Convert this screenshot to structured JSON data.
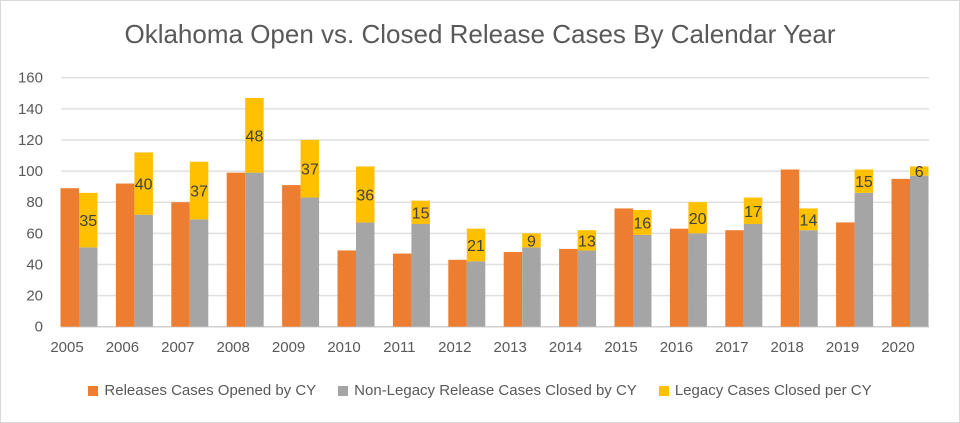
{
  "chart_data": {
    "type": "bar",
    "title": "Oklahoma Open vs. Closed Release Cases By Calendar Year",
    "categories": [
      "2005",
      "2006",
      "2007",
      "2008",
      "2009",
      "2010",
      "2011",
      "2012",
      "2013",
      "2014",
      "2015",
      "2016",
      "2017",
      "2018",
      "2019",
      "2020"
    ],
    "series": [
      {
        "name": "Releases Cases Opened by CY",
        "color": "#ED7D31",
        "stack": "a",
        "values": [
          89,
          92,
          80,
          99,
          91,
          49,
          47,
          43,
          48,
          50,
          76,
          63,
          62,
          101,
          67,
          95
        ]
      },
      {
        "name": "Non-Legacy Release Cases Closed by CY",
        "color": "#A5A5A5",
        "stack": "b",
        "values": [
          51,
          72,
          69,
          99,
          83,
          67,
          66,
          42,
          51,
          49,
          59,
          60,
          66,
          62,
          86,
          97
        ]
      },
      {
        "name": "Legacy Cases Closed per CY",
        "color": "#FFC000",
        "stack": "b",
        "data_labels": true,
        "values": [
          35,
          40,
          37,
          48,
          37,
          36,
          15,
          21,
          9,
          13,
          16,
          20,
          17,
          14,
          15,
          6
        ]
      }
    ],
    "ylim": [
      0,
      160
    ],
    "yticks": [
      0,
      20,
      40,
      60,
      80,
      100,
      120,
      140,
      160
    ],
    "grid": true,
    "legend": "bottom"
  }
}
